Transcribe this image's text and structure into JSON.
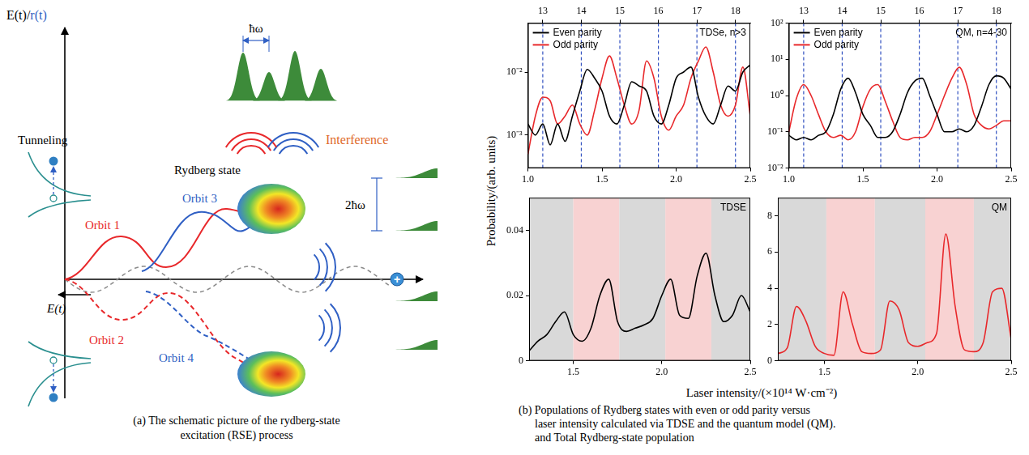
{
  "panel_a": {
    "axis_label": "E(t)/r(t)",
    "tunneling": "Tunneling",
    "rydberg": "Rydberg state",
    "interference": "Interference",
    "field": "E(t)",
    "photon": "ħω",
    "double_photon": "2ħω",
    "nucleus": "+",
    "orbits": [
      {
        "name": "Orbit 1",
        "color": "#e8282b",
        "line_style": "solid"
      },
      {
        "name": "Orbit 2",
        "color": "#e8282b",
        "line_style": "dashed"
      },
      {
        "name": "Orbit 3",
        "color": "#2f5fc4",
        "line_style": "solid"
      },
      {
        "name": "Orbit 4",
        "color": "#2f5fc4",
        "line_style": "dashed"
      }
    ],
    "caption": [
      "(a) The schematic picture of the rydberg-state",
      "excitation (RSE) process"
    ]
  },
  "panel_b": {
    "x_label": "Laser intensity/(×10¹⁴ W·cm⁻²)",
    "y_label": "Probability/(arb. units)",
    "caption": [
      "(b) Populations of Rydberg states with even or odd parity versus",
      "laser intensity calculated via TDSE and the quantum model (QM).",
      "and Total Rydberg-state population"
    ]
  },
  "chart_data": [
    {
      "type": "line",
      "annotation": "TDSe, n>3",
      "x": [
        1,
        1.05,
        1.1,
        1.15,
        1.2,
        1.25,
        1.3,
        1.35,
        1.4,
        1.45,
        1.5,
        1.55,
        1.6,
        1.65,
        1.7,
        1.75,
        1.8,
        1.85,
        1.9,
        1.95,
        2,
        2.05,
        2.1,
        2.15,
        2.2,
        2.25,
        2.3,
        2.35,
        2.4,
        2.45,
        2.5
      ],
      "series": [
        {
          "name": "Even parity",
          "color": "#000000",
          "values": [
            0.0015,
            0.001,
            0.0015,
            0.0007,
            0.0015,
            0.0008,
            0.002,
            0.005,
            0.011,
            0.008,
            0.005,
            0.002,
            0.0015,
            0.003,
            0.007,
            0.006,
            0.005,
            0.002,
            0.0015,
            0.003,
            0.008,
            0.01,
            0.012,
            0.004,
            0.002,
            0.0015,
            0.003,
            0.006,
            0.005,
            0.01,
            0.013
          ]
        },
        {
          "name": "Odd parity",
          "color": "#e8282b",
          "values": [
            0.0005,
            0.002,
            0.004,
            0.0035,
            0.0015,
            0.002,
            0.003,
            0.0015,
            0.001,
            0.0025,
            0.008,
            0.018,
            0.008,
            0.003,
            0.0015,
            0.0025,
            0.015,
            0.008,
            0.002,
            0.0012,
            0.002,
            0.003,
            0.008,
            0.015,
            0.025,
            0.01,
            0.003,
            0.002,
            0.003,
            0.012,
            0.002
          ]
        }
      ],
      "xlim": [
        1,
        2.5
      ],
      "xticks": [
        {
          "value": 1,
          "label": "1.0"
        },
        1.5,
        {
          "value": 2,
          "label": "2.0"
        },
        2.5
      ],
      "x2lim": [
        1,
        2.5
      ],
      "x2ticks": [
        {
          "value": 1.1,
          "label": "13"
        },
        {
          "value": 1.36,
          "label": "14"
        },
        {
          "value": 1.62,
          "label": "15"
        },
        {
          "value": 1.88,
          "label": "16"
        },
        {
          "value": 2.14,
          "label": "17"
        },
        {
          "value": 2.4,
          "label": "18"
        }
      ],
      "ylim": [
        0.0003,
        0.06
      ],
      "yticks": [
        {
          "value": 0.001,
          "label": "10⁻³"
        },
        {
          "value": 0.01,
          "label": "10⁻²"
        }
      ],
      "log": "y",
      "grid": "x2",
      "legend": "upper left"
    },
    {
      "type": "line",
      "annotation": "QM, n=4-30",
      "x": [
        1,
        1.05,
        1.1,
        1.15,
        1.2,
        1.25,
        1.3,
        1.35,
        1.4,
        1.45,
        1.5,
        1.55,
        1.6,
        1.65,
        1.7,
        1.75,
        1.8,
        1.85,
        1.9,
        1.95,
        2,
        2.05,
        2.1,
        2.15,
        2.2,
        2.25,
        2.3,
        2.35,
        2.4,
        2.45,
        2.5
      ],
      "series": [
        {
          "name": "Even parity",
          "color": "#000000",
          "values": [
            0.08,
            0.06,
            0.07,
            0.06,
            0.08,
            0.1,
            0.3,
            1.5,
            3,
            1.2,
            0.3,
            0.15,
            0.07,
            0.07,
            0.1,
            0.3,
            1.2,
            2.5,
            3,
            1,
            0.3,
            0.1,
            0.1,
            0.12,
            0.1,
            0.15,
            0.5,
            2,
            3.5,
            3,
            1.5
          ]
        },
        {
          "name": "Odd parity",
          "color": "#e8282b",
          "values": [
            0.1,
            0.8,
            2,
            1,
            0.3,
            0.1,
            0.07,
            0.08,
            0.06,
            0.1,
            0.5,
            1.5,
            2,
            0.7,
            0.2,
            0.07,
            0.06,
            0.07,
            0.07,
            0.1,
            0.3,
            1,
            3,
            6,
            2,
            0.3,
            0.15,
            0.12,
            0.15,
            0.2,
            0.2
          ]
        }
      ],
      "xlim": [
        1,
        2.5
      ],
      "xticks": [
        {
          "value": 1,
          "label": "1.0"
        },
        1.5,
        {
          "value": 2,
          "label": "2.0"
        },
        2.5
      ],
      "x2lim": [
        1,
        2.5
      ],
      "x2ticks": [
        {
          "value": 1.1,
          "label": "13"
        },
        {
          "value": 1.36,
          "label": "14"
        },
        {
          "value": 1.62,
          "label": "15"
        },
        {
          "value": 1.88,
          "label": "16"
        },
        {
          "value": 2.14,
          "label": "17"
        },
        {
          "value": 2.4,
          "label": "18"
        }
      ],
      "ylim": [
        0.01,
        100
      ],
      "yticks": [
        {
          "value": 0.01,
          "label": "10⁻²"
        },
        {
          "value": 0.1,
          "label": "10⁻¹"
        },
        {
          "value": 1,
          "label": "10⁰"
        },
        {
          "value": 10,
          "label": "10¹"
        },
        {
          "value": 100,
          "label": "10²"
        }
      ],
      "log": "y",
      "grid": "x2",
      "legend": "upper left"
    },
    {
      "type": "line",
      "annotation": "TDSE",
      "x": [
        1.25,
        1.3,
        1.35,
        1.4,
        1.45,
        1.5,
        1.55,
        1.6,
        1.65,
        1.7,
        1.75,
        1.8,
        1.85,
        1.9,
        1.95,
        2,
        2.05,
        2.1,
        2.15,
        2.2,
        2.25,
        2.3,
        2.35,
        2.4,
        2.45,
        2.5
      ],
      "values": [
        0.003,
        0.006,
        0.008,
        0.012,
        0.015,
        0.008,
        0.006,
        0.01,
        0.02,
        0.025,
        0.012,
        0.009,
        0.01,
        0.011,
        0.013,
        0.02,
        0.025,
        0.014,
        0.013,
        0.026,
        0.033,
        0.02,
        0.012,
        0.014,
        0.02,
        0.015
      ],
      "color": "#000000",
      "bands": [
        {
          "from": 1.25,
          "to": 1.5,
          "color": "#d9d9d9"
        },
        {
          "from": 1.5,
          "to": 1.76,
          "color": "#f8d2d2"
        },
        {
          "from": 1.76,
          "to": 2.02,
          "color": "#d9d9d9"
        },
        {
          "from": 2.02,
          "to": 2.28,
          "color": "#f8d2d2"
        },
        {
          "from": 2.28,
          "to": 2.5,
          "color": "#d9d9d9"
        }
      ],
      "xlim": [
        1.25,
        2.5
      ],
      "xticks": [
        1.5,
        {
          "value": 2,
          "label": "2.0"
        },
        2.5
      ],
      "ylim": [
        0,
        0.05
      ],
      "yticks": [
        0,
        0.02,
        0.04
      ]
    },
    {
      "type": "line",
      "annotation": "QM",
      "x": [
        1.25,
        1.3,
        1.35,
        1.4,
        1.45,
        1.5,
        1.55,
        1.6,
        1.65,
        1.7,
        1.75,
        1.8,
        1.85,
        1.9,
        1.95,
        2,
        2.05,
        2.1,
        2.15,
        2.2,
        2.25,
        2.3,
        2.35,
        2.4,
        2.45,
        2.5
      ],
      "values": [
        0.4,
        0.7,
        3,
        2.2,
        0.8,
        0.4,
        0.3,
        3.8,
        2,
        0.5,
        0.4,
        0.6,
        3.3,
        2.8,
        1,
        0.8,
        1,
        1.5,
        7,
        3,
        0.6,
        0.5,
        1,
        3.8,
        4,
        1.2
      ],
      "color": "#e8282b",
      "bands": [
        {
          "from": 1.25,
          "to": 1.51,
          "color": "#d9d9d9"
        },
        {
          "from": 1.51,
          "to": 1.77,
          "color": "#f8d2d2"
        },
        {
          "from": 1.77,
          "to": 2.04,
          "color": "#d9d9d9"
        },
        {
          "from": 2.04,
          "to": 2.3,
          "color": "#f8d2d2"
        },
        {
          "from": 2.3,
          "to": 2.5,
          "color": "#d9d9d9"
        }
      ],
      "xlim": [
        1.25,
        2.5
      ],
      "xticks": [
        1.5,
        {
          "value": 2,
          "label": "2.0"
        },
        2.5
      ],
      "ylim": [
        0,
        9
      ],
      "yticks": [
        0,
        2,
        4,
        6,
        8
      ]
    }
  ]
}
